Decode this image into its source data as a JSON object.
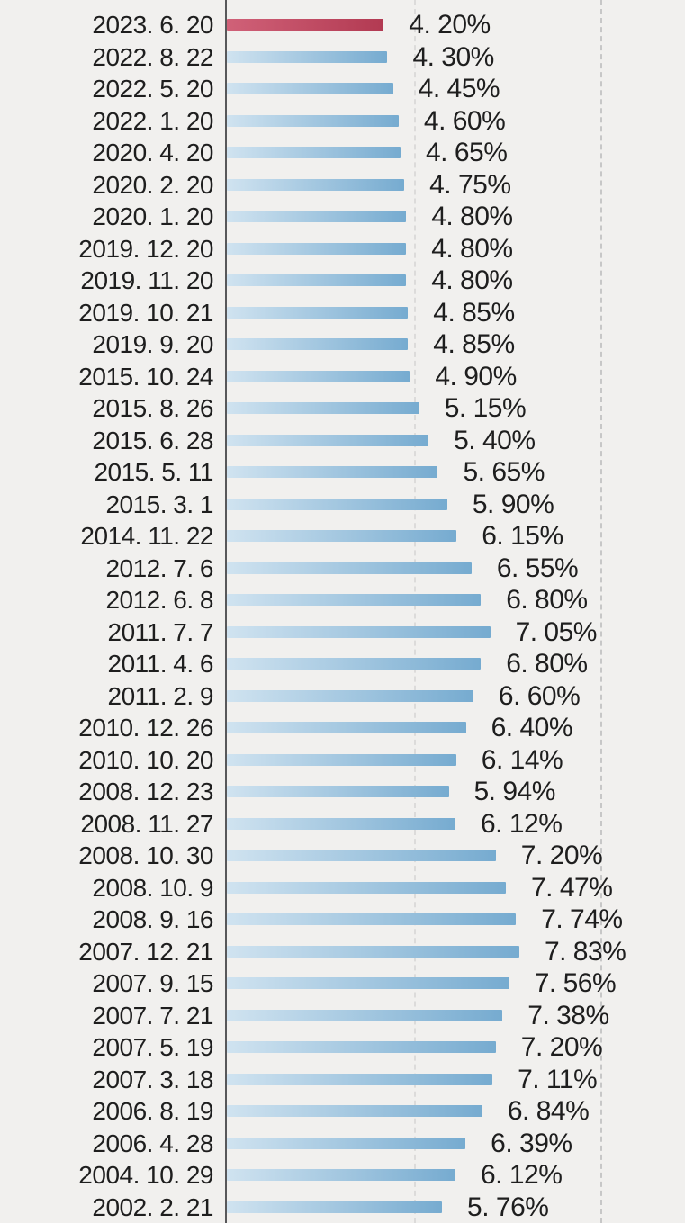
{
  "chart_data": {
    "type": "bar",
    "orientation": "horizontal",
    "xlabel": "",
    "ylabel": "",
    "x_unit": "%",
    "xlim": [
      0,
      10
    ],
    "gridlines_x": [
      5,
      10
    ],
    "grid_style": "dashed-vertical",
    "legend": null,
    "highlight_index": 0,
    "categories": [
      "2023. 6. 20",
      "2022. 8. 22",
      "2022. 5. 20",
      "2022. 1. 20",
      "2020. 4. 20",
      "2020. 2. 20",
      "2020. 1. 20",
      "2019. 12. 20",
      "2019. 11. 20",
      "2019. 10. 21",
      "2019. 9. 20",
      "2015. 10. 24",
      "2015. 8. 26",
      "2015. 6. 28",
      "2015. 5. 11",
      "2015. 3. 1",
      "2014. 11. 22",
      "2012. 7. 6",
      "2012. 6. 8",
      "2011. 7. 7",
      "2011. 4. 6",
      "2011. 2. 9",
      "2010. 12. 26",
      "2010. 10. 20",
      "2008. 12. 23",
      "2008. 11. 27",
      "2008. 10. 30",
      "2008. 10. 9",
      "2008. 9. 16",
      "2007. 12. 21",
      "2007. 9. 15",
      "2007. 7. 21",
      "2007. 5. 19",
      "2007. 3. 18",
      "2006. 8. 19",
      "2006. 4. 28",
      "2004. 10. 29",
      "2002. 2. 21"
    ],
    "values": [
      4.2,
      4.3,
      4.45,
      4.6,
      4.65,
      4.75,
      4.8,
      4.8,
      4.8,
      4.85,
      4.85,
      4.9,
      5.15,
      5.4,
      5.65,
      5.9,
      6.15,
      6.55,
      6.8,
      7.05,
      6.8,
      6.6,
      6.4,
      6.14,
      5.94,
      6.12,
      7.2,
      7.47,
      7.74,
      7.83,
      7.56,
      7.38,
      7.2,
      7.11,
      6.84,
      6.39,
      6.12,
      5.76
    ],
    "value_labels": [
      "4. 20%",
      "4. 30%",
      "4. 45%",
      "4. 60%",
      "4. 65%",
      "4. 75%",
      "4. 80%",
      "4. 80%",
      "4. 80%",
      "4. 85%",
      "4. 85%",
      "4. 90%",
      "5. 15%",
      "5. 40%",
      "5. 65%",
      "5. 90%",
      "6. 15%",
      "6. 55%",
      "6. 80%",
      "7. 05%",
      "6. 80%",
      "6. 60%",
      "6. 40%",
      "6. 14%",
      "5. 94%",
      "6. 12%",
      "7. 20%",
      "7. 47%",
      "7. 74%",
      "7. 83%",
      "7. 56%",
      "7. 38%",
      "7. 20%",
      "7. 11%",
      "6. 84%",
      "6. 39%",
      "6. 12%",
      "5. 76%"
    ],
    "colors": {
      "background": "#f1f0ee",
      "text": "#1e1e1e",
      "axis": "#58585a",
      "grid_faint": "rgba(180,180,180,0.35)",
      "grid": "#c7c7c7",
      "bar_start": "#d0e3f0",
      "bar_end": "#76abd0",
      "highlight_start": "#d06178",
      "highlight_end": "#b23a52"
    }
  }
}
